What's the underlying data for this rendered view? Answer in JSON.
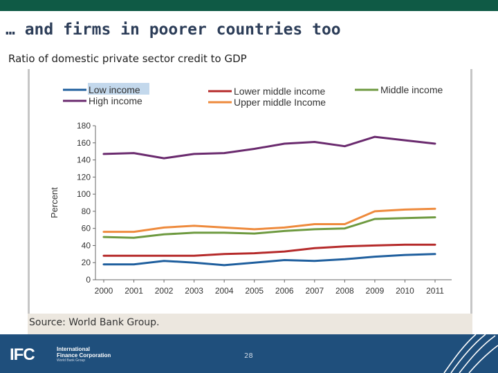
{
  "slide_title": "… and firms in poorer countries too",
  "figure_title": "Ratio of domestic private sector credit to GDP",
  "source": "Source: World Bank Group.",
  "footer": {
    "logo_text": "IFC",
    "org_name_line1": "International",
    "org_name_line2": "Finance Corporation",
    "org_subtitle": "World Bank Group",
    "page_number": "28"
  },
  "chart_data": {
    "type": "line",
    "title": "Ratio of domestic private sector credit to GDP",
    "xlabel": "",
    "ylabel": "Percent",
    "ylim": [
      0,
      180
    ],
    "yticks": [
      0,
      20,
      40,
      60,
      80,
      100,
      120,
      140,
      160,
      180
    ],
    "categories": [
      "2000",
      "2001",
      "2002",
      "2003",
      "2004",
      "2005",
      "2006",
      "2007",
      "2008",
      "2009",
      "2010",
      "2011"
    ],
    "series": [
      {
        "name": "Low income",
        "color": "#1f5f9e",
        "values": [
          18,
          18,
          22,
          20,
          17,
          20,
          23,
          22,
          24,
          27,
          29,
          30
        ]
      },
      {
        "name": "High income",
        "color": "#6a2a6e",
        "values": [
          147,
          148,
          142,
          147,
          148,
          153,
          159,
          161,
          156,
          167,
          163,
          159
        ]
      },
      {
        "name": "Lower middle income",
        "color": "#b52a2a",
        "values": [
          28,
          28,
          28,
          28,
          30,
          31,
          33,
          37,
          39,
          40,
          41,
          41
        ]
      },
      {
        "name": "Upper middle income",
        "color": "#ee8a3c",
        "values": [
          56,
          56,
          61,
          63,
          61,
          59,
          61,
          65,
          65,
          80,
          82,
          83
        ]
      },
      {
        "name": "Middle income",
        "color": "#6e9a40",
        "values": [
          50,
          49,
          53,
          55,
          55,
          54,
          57,
          59,
          60,
          71,
          72,
          73
        ]
      }
    ],
    "legend": [
      {
        "name": "Low income",
        "color": "#1f5f9e",
        "highlight": true
      },
      {
        "name": "High income",
        "color": "#6a2a6e"
      },
      {
        "name": "Lower middle income",
        "color": "#b52a2a"
      },
      {
        "name": "Upper middle Income",
        "color": "#ee8a3c"
      },
      {
        "name": "Middle income",
        "color": "#6e9a40"
      }
    ]
  }
}
